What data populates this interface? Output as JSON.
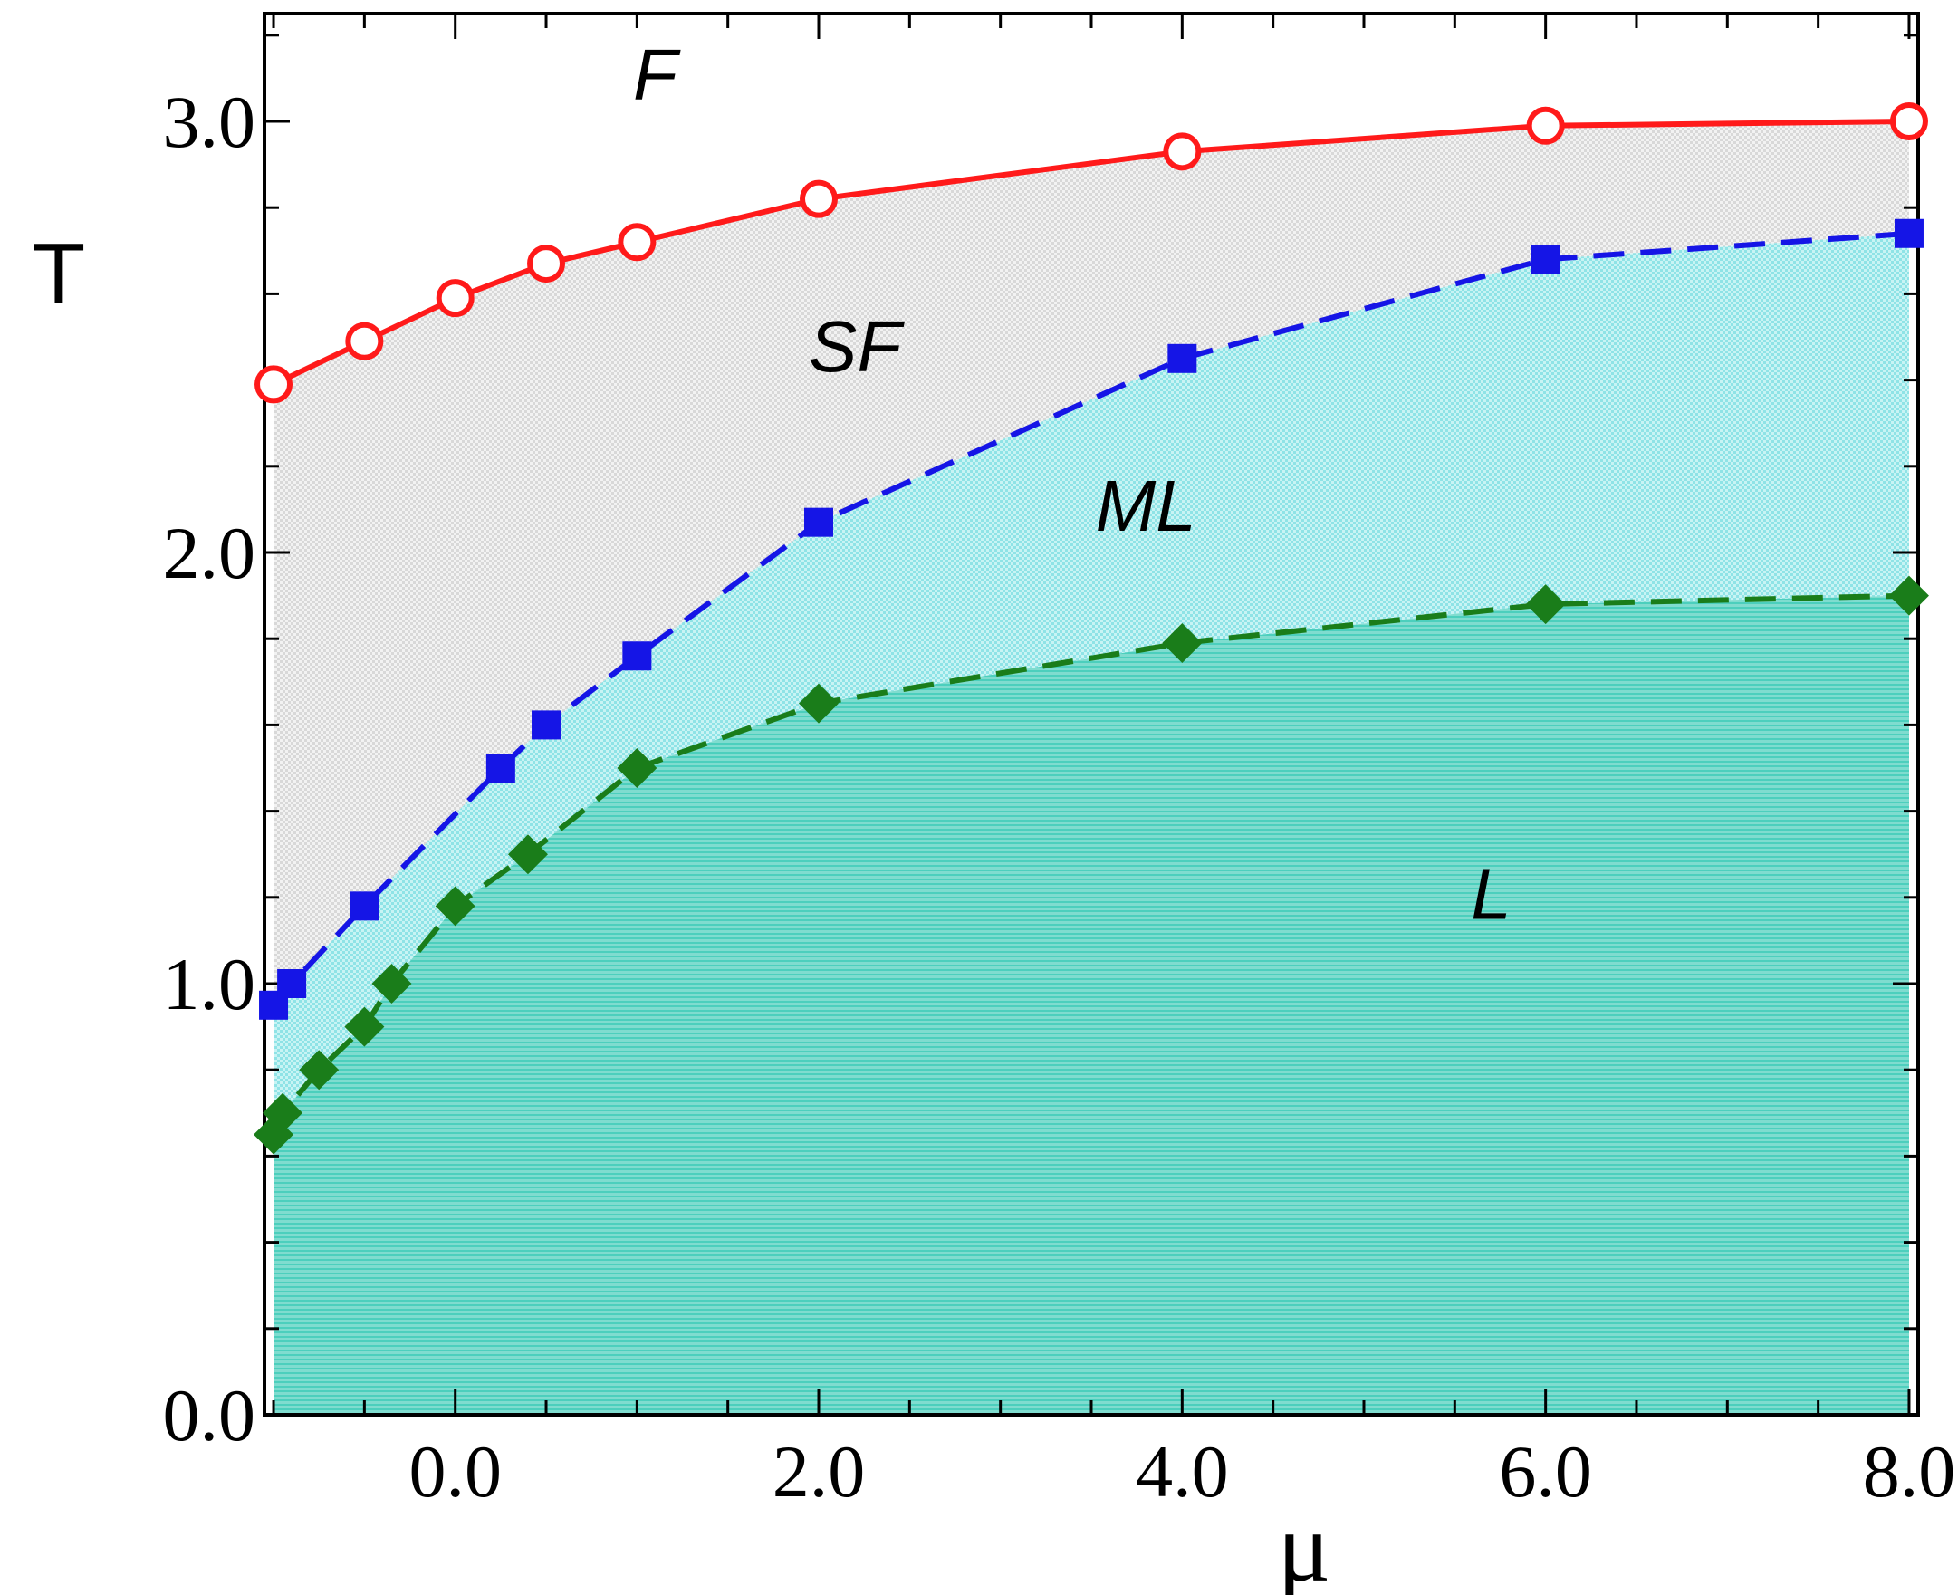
{
  "chart_data": {
    "type": "line",
    "title": "",
    "xlabel": "μ",
    "ylabel": "T",
    "xlim": [
      -1.05,
      8.05
    ],
    "ylim": [
      0.0,
      3.25
    ],
    "xticks": [
      0,
      2,
      4,
      6,
      8
    ],
    "xtick_labels": [
      "0.0",
      "2.0",
      "4.0",
      "6.0",
      "8.0"
    ],
    "xminor_step": 0.5,
    "yticks": [
      0,
      1,
      2,
      3
    ],
    "ytick_labels": [
      "0.0",
      "1.0",
      "2.0",
      "3.0"
    ],
    "yminor_step": 0.2,
    "grid": false,
    "series": [
      {
        "name": "F-SF boundary",
        "color": "#ff1a1a",
        "marker": "open-circle",
        "linestyle": "solid",
        "x": [
          -1.0,
          -0.5,
          0.0,
          0.5,
          1.0,
          2.0,
          4.0,
          6.0,
          8.0
        ],
        "y": [
          2.39,
          2.49,
          2.59,
          2.67,
          2.72,
          2.82,
          2.93,
          2.99,
          3.0
        ]
      },
      {
        "name": "SF-ML boundary",
        "color": "#1515e6",
        "marker": "filled-square",
        "linestyle": "dashed",
        "x": [
          -1.0,
          -0.9,
          -0.5,
          0.25,
          0.5,
          1.0,
          2.0,
          4.0,
          6.0,
          8.0
        ],
        "y": [
          0.95,
          1.0,
          1.18,
          1.5,
          1.6,
          1.76,
          2.07,
          2.45,
          2.68,
          2.74
        ]
      },
      {
        "name": "ML-L boundary",
        "color": "#1a7d1a",
        "marker": "filled-diamond",
        "linestyle": "dashed",
        "x": [
          -1.0,
          -0.95,
          -0.75,
          -0.5,
          -0.35,
          0.0,
          0.4,
          1.0,
          2.0,
          4.0,
          6.0,
          8.0
        ],
        "y": [
          0.65,
          0.7,
          0.8,
          0.9,
          1.0,
          1.18,
          1.3,
          1.5,
          1.65,
          1.79,
          1.88,
          1.9
        ]
      }
    ],
    "regions": [
      {
        "label": "F",
        "x": 1.1,
        "y": 3.05,
        "fill": "#ffffff"
      },
      {
        "label": "SF",
        "x": 2.2,
        "y": 2.42,
        "fill": "#e6e6e6"
      },
      {
        "label": "ML",
        "x": 3.8,
        "y": 2.05,
        "fill": "#a9ecec"
      },
      {
        "label": "L",
        "x": 5.7,
        "y": 1.15,
        "fill": "#5fd6c6"
      }
    ]
  }
}
